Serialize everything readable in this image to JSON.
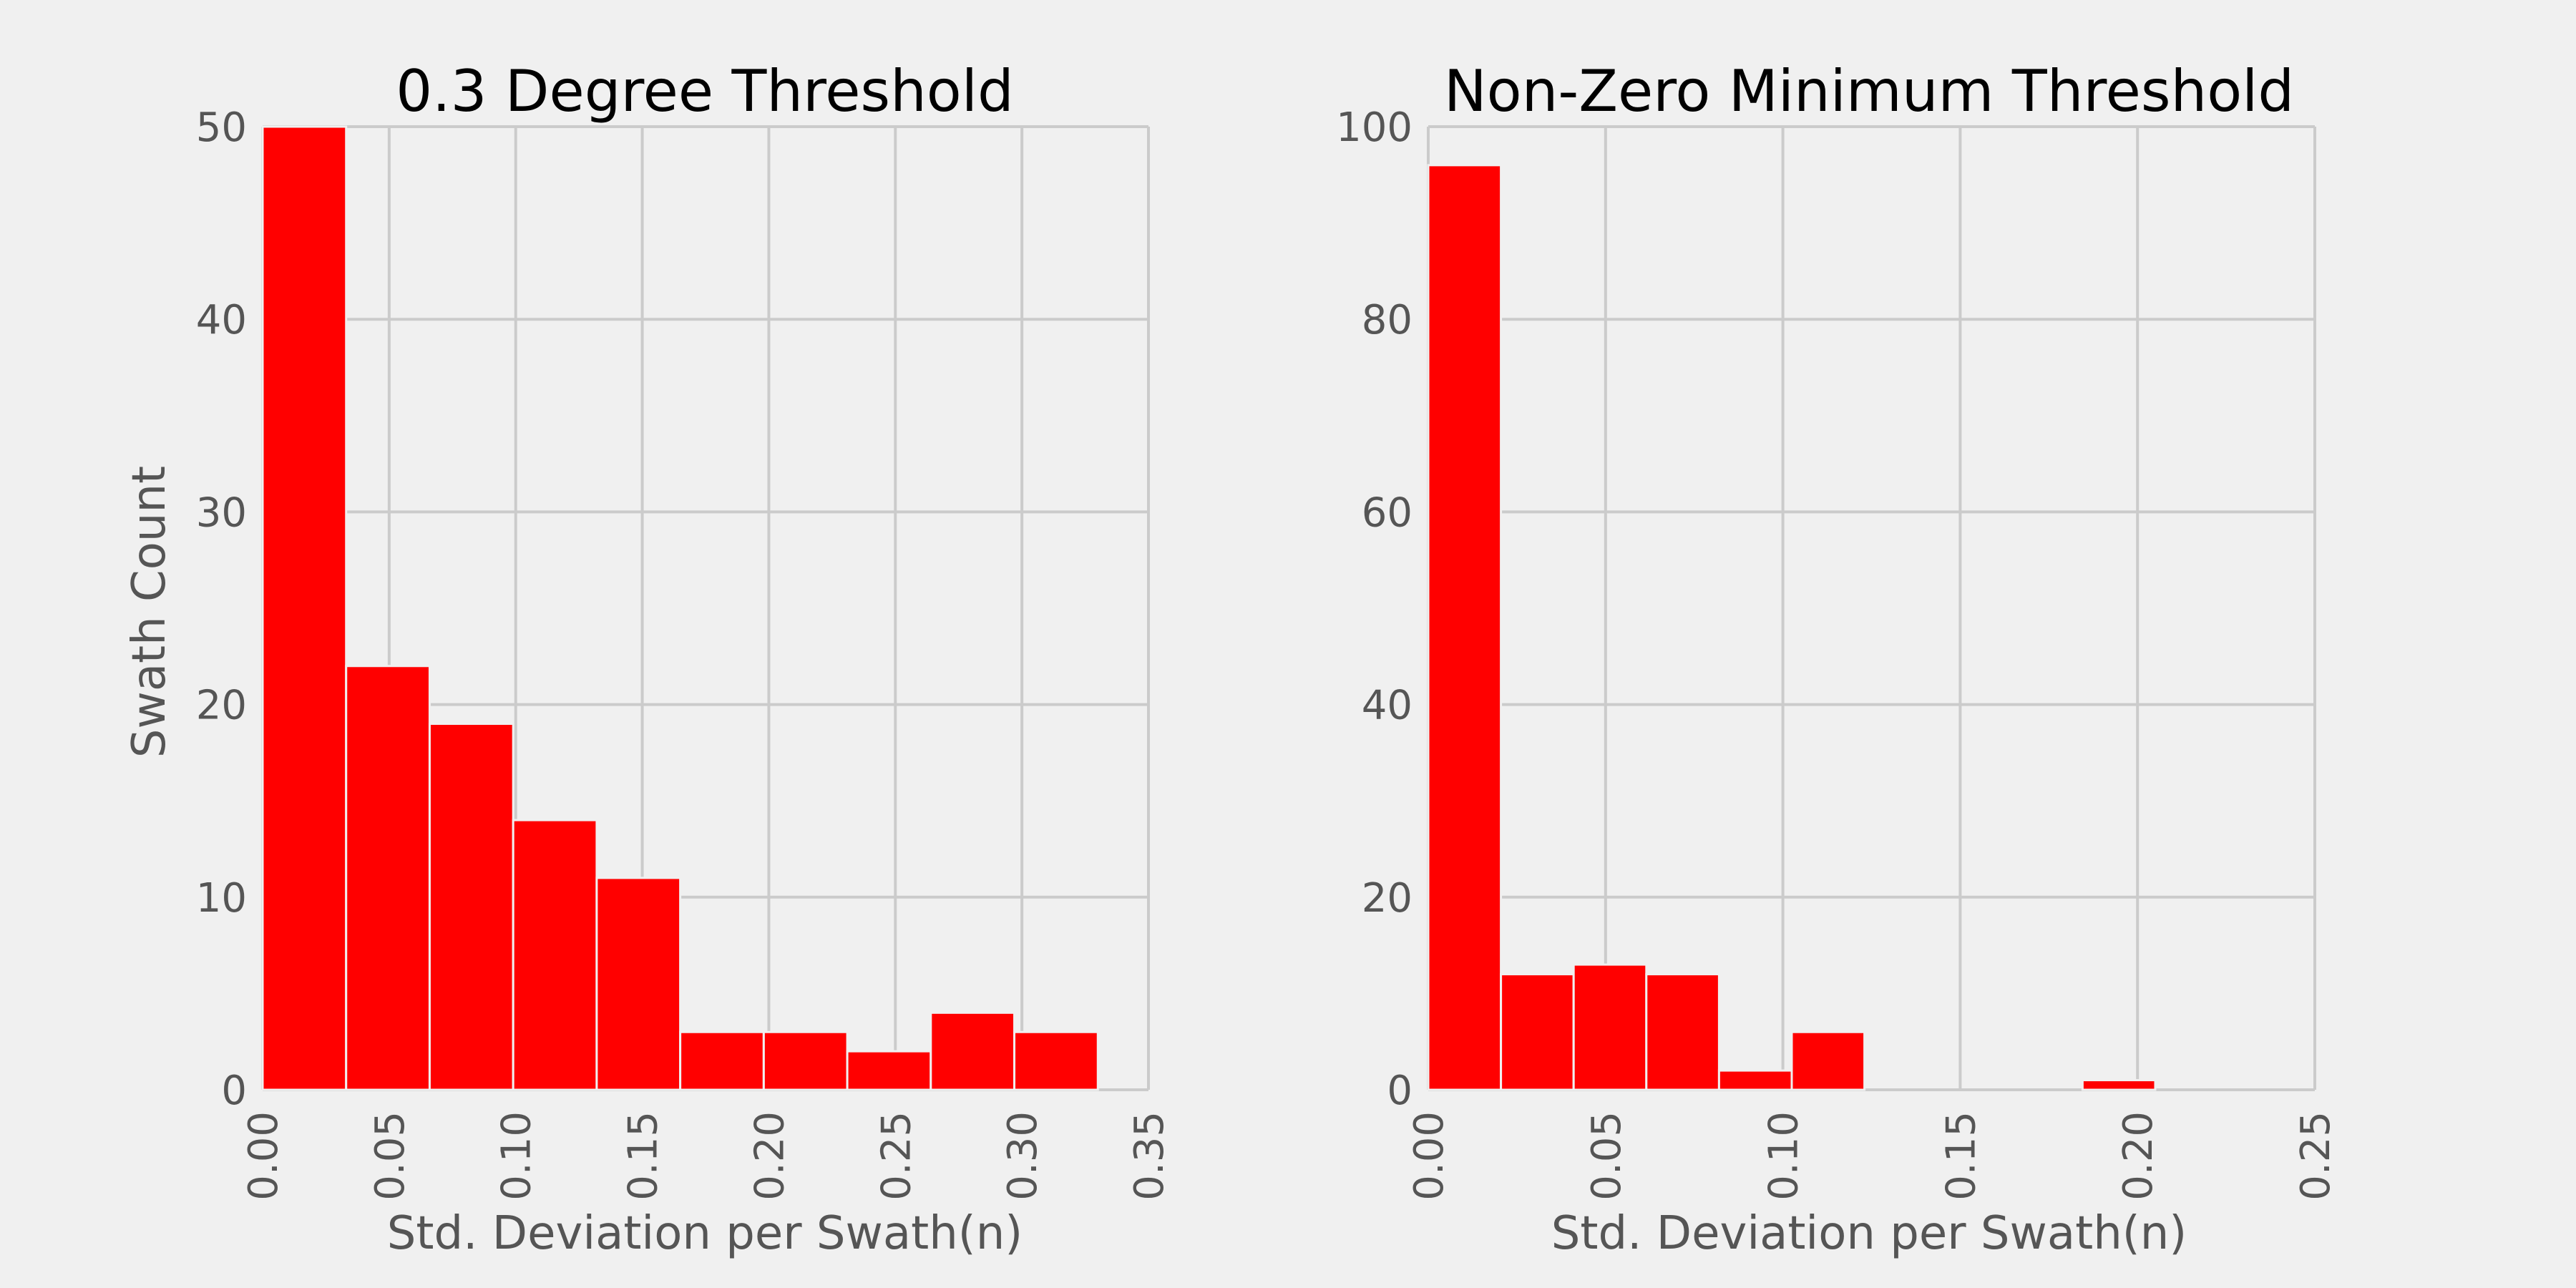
{
  "colors": {
    "background": "#f0f0f0",
    "bar": "#ff0000",
    "grid": "#cbcbcb",
    "text": "#555555"
  },
  "chart_data": [
    {
      "type": "bar",
      "title": "0.3 Degree Threshold",
      "xlabel": "Std. Deviation per Swath(n)",
      "ylabel": "Swath Count",
      "xlim": [
        0,
        0.35
      ],
      "ylim": [
        0,
        50
      ],
      "xticks": [
        "0.00",
        "0.05",
        "0.10",
        "0.15",
        "0.20",
        "0.25",
        "0.30",
        "0.35"
      ],
      "yticks": [
        "0",
        "10",
        "20",
        "30",
        "40",
        "50"
      ],
      "bin_edges": [
        0.0,
        0.033,
        0.066,
        0.099,
        0.132,
        0.165,
        0.198,
        0.231,
        0.264,
        0.297,
        0.33
      ],
      "values": [
        50,
        22,
        19,
        14,
        11,
        3,
        3,
        2,
        4,
        3
      ]
    },
    {
      "type": "bar",
      "title": "Non-Zero Minimum Threshold",
      "xlabel": "Std. Deviation per Swath(n)",
      "ylabel": "",
      "xlim": [
        0,
        0.25
      ],
      "ylim": [
        0,
        100
      ],
      "xticks": [
        "0.00",
        "0.05",
        "0.10",
        "0.15",
        "0.20",
        "0.25"
      ],
      "yticks": [
        "0",
        "20",
        "40",
        "60",
        "80",
        "100"
      ],
      "bin_edges": [
        0.0,
        0.0205,
        0.041,
        0.0615,
        0.082,
        0.1025,
        0.123,
        0.1435,
        0.164,
        0.1845,
        0.205
      ],
      "values": [
        96,
        12,
        13,
        12,
        2,
        6,
        0,
        0,
        0,
        1
      ]
    }
  ]
}
